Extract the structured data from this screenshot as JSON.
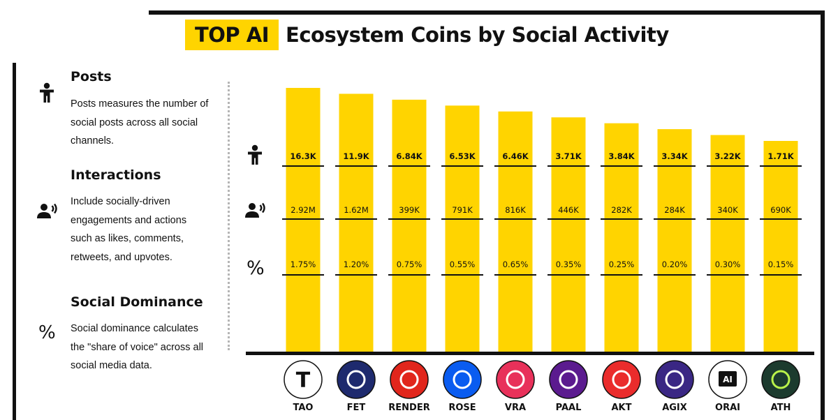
{
  "title": {
    "highlight": "TOP AI",
    "rest": "Ecosystem Coins by Social Activity"
  },
  "legend": [
    {
      "icon": "person-icon",
      "heading": "Posts",
      "description": "Posts measures the number of social posts across all social channels."
    },
    {
      "icon": "speaking-person-icon",
      "heading": "Interactions",
      "description": "Include socially-driven engagements and actions such as likes, comments, retweets, and upvotes."
    },
    {
      "icon": "percent-icon",
      "heading": "Social Dominance",
      "description": "Social dominance calculates the \"share of voice\" across all social media data."
    }
  ],
  "row_symbols": {
    "dominance": "%"
  },
  "colors": {
    "bar": "#ffd400",
    "highlight": "#ffd400",
    "ink": "#111111"
  },
  "chart_data": {
    "type": "bar",
    "categories": [
      "TAO",
      "FET",
      "RENDER",
      "ROSE",
      "VRA",
      "PAAL",
      "AKT",
      "AGIX",
      "ORAI",
      "ATH"
    ],
    "series": [
      {
        "name": "Posts",
        "labels": [
          "16.3K",
          "11.9K",
          "6.84K",
          "6.53K",
          "6.46K",
          "3.71K",
          "3.84K",
          "3.34K",
          "3.22K",
          "1.71K"
        ]
      },
      {
        "name": "Interactions",
        "labels": [
          "2.92M",
          "1.62M",
          "399K",
          "791K",
          "816K",
          "446K",
          "282K",
          "284K",
          "340K",
          "690K"
        ]
      },
      {
        "name": "Social Dominance",
        "labels": [
          "1.75%",
          "1.20%",
          "0.75%",
          "0.55%",
          "0.65%",
          "0.35%",
          "0.25%",
          "0.20%",
          "0.30%",
          "0.15%"
        ]
      }
    ],
    "bar_rank": [
      10,
      9,
      8,
      7,
      6,
      5,
      4,
      3,
      2,
      1
    ],
    "logos": [
      {
        "symbol": "T",
        "icon": "tao-logo",
        "bg": "#ffffff",
        "fg": "#111111"
      },
      {
        "symbol": "",
        "icon": "fet-logo",
        "bg": "#1e2a6e",
        "fg": "#ffffff"
      },
      {
        "symbol": "",
        "icon": "render-logo",
        "bg": "#e1261c",
        "fg": "#ffffff"
      },
      {
        "symbol": "",
        "icon": "rose-logo",
        "bg": "#0a5cf0",
        "fg": "#ffffff"
      },
      {
        "symbol": "",
        "icon": "vra-logo",
        "bg": "#e8315a",
        "fg": "#ffffff"
      },
      {
        "symbol": "",
        "icon": "paal-logo",
        "bg": "#5b1b8f",
        "fg": "#ffffff"
      },
      {
        "symbol": "",
        "icon": "akt-logo",
        "bg": "#ea2c2c",
        "fg": "#ffffff"
      },
      {
        "symbol": "",
        "icon": "agix-logo",
        "bg": "#3a2784",
        "fg": "#ffffff"
      },
      {
        "symbol": "AI",
        "icon": "orai-logo",
        "bg": "#ffffff",
        "fg": "#111111"
      },
      {
        "symbol": "",
        "icon": "ath-logo",
        "bg": "#1c3b2e",
        "fg": "#b9f24a"
      }
    ]
  }
}
